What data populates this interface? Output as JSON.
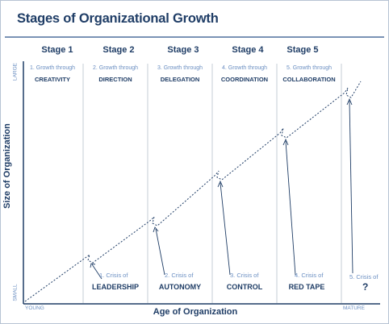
{
  "title": "Stages of Organizational Growth",
  "stages": [
    {
      "label": "Stage 1",
      "growth_line": "1. Growth through",
      "growth_key": "CREATIVITY"
    },
    {
      "label": "Stage 2",
      "growth_line": "2. Growth through",
      "growth_key": "DIRECTION"
    },
    {
      "label": "Stage 3",
      "growth_line": "3. Growth through",
      "growth_key": "DELEGATION"
    },
    {
      "label": "Stage 4",
      "growth_line": "4. Growth through",
      "growth_key": "COORDINATION"
    },
    {
      "label": "Stage 5",
      "growth_line": "5. Growth through",
      "growth_key": "COLLABORATION"
    }
  ],
  "crises": [
    {
      "line": "1. Crisis of",
      "key": "LEADERSHIP"
    },
    {
      "line": "2. Crisis of",
      "key": "AUTONOMY"
    },
    {
      "line": "3. Crisis of",
      "key": "CONTROL"
    },
    {
      "line": "4. Crisis of",
      "key": "RED TAPE"
    },
    {
      "line": "5. Crisis of",
      "key": "?"
    }
  ],
  "axes": {
    "y_title": "Size of Organization",
    "y_low": "SMALL",
    "y_high": "LARGE",
    "x_title": "Age of Organization",
    "x_low": "YOUNG",
    "x_high": "MATURE"
  },
  "colors": {
    "title": "#1f3d66",
    "accent_text": "#6b8fc2",
    "axis": "#1f3d66",
    "divider": "#c4ccd6",
    "rule": "#7a93b5"
  }
}
